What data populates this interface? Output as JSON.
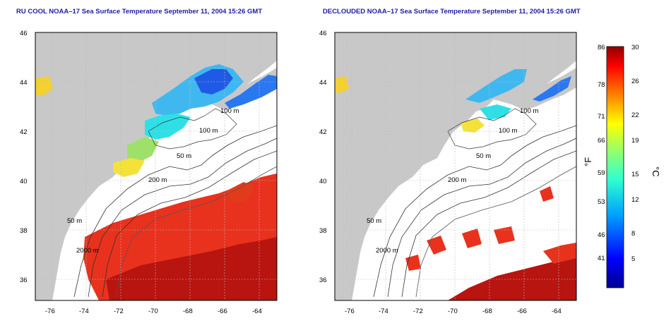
{
  "panels": [
    {
      "title": "RU COOL NOAA–17 Sea Surface Temperature September 11, 2004 15:26 GMT",
      "y_ticks": [
        "46",
        "44",
        "42",
        "40",
        "38",
        "36"
      ],
      "x_ticks": [
        "-76",
        "-74",
        "-72",
        "-70",
        "-68",
        "-66",
        "-64"
      ],
      "contour_labels": [
        "100 m",
        "100 m",
        "50 m",
        "200 m",
        "50 m",
        "2000 m"
      ]
    },
    {
      "title": "DECLOUDED NOAA–17 Sea Surface Temperature September 11, 2004 15:26 GMT",
      "y_ticks": [
        "46",
        "44",
        "42",
        "40",
        "38",
        "36"
      ],
      "x_ticks": [
        "-76",
        "-74",
        "-72",
        "-70",
        "-68",
        "-66",
        "-64"
      ],
      "contour_labels": [
        "100 m",
        "100 m",
        "50 m",
        "200 m",
        "50 m",
        "2000 m"
      ]
    }
  ],
  "colorbar": {
    "fahrenheit_label": "°F",
    "celsius_label": "°C",
    "fahrenheit_ticks": [
      "86",
      "78",
      "71",
      "66",
      "59",
      "53",
      "46",
      "41"
    ],
    "celsius_ticks": [
      "30",
      "26",
      "22",
      "19",
      "15",
      "12",
      "8",
      "5"
    ]
  },
  "colors": {
    "land": "#c8c8c8",
    "ocean": "#ffffff",
    "warm": "#d42a12",
    "deep_warm": "#b81410",
    "cold": "#1e5ae6",
    "cyan": "#2ee0e6",
    "yellow": "#f4e23a"
  }
}
